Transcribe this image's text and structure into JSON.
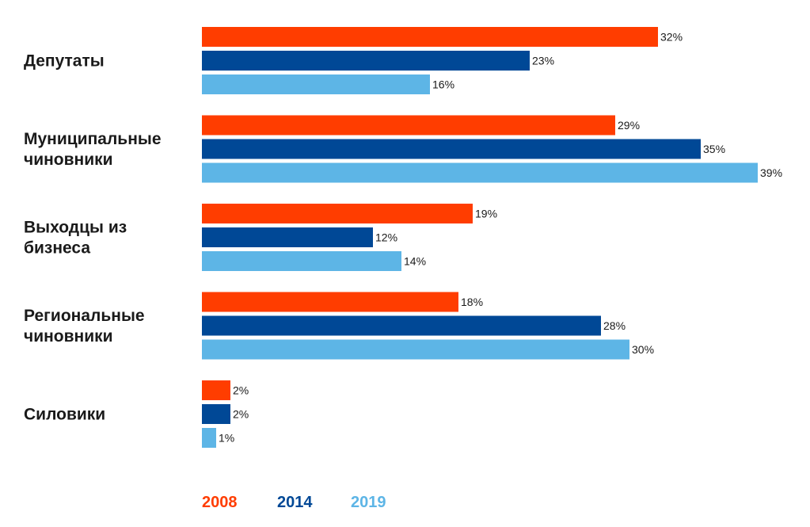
{
  "chart_data": {
    "type": "bar",
    "orientation": "horizontal",
    "categories": [
      [
        "Депутаты"
      ],
      [
        "Муниципальные",
        "чиновники"
      ],
      [
        "Выходцы из",
        "бизнеса"
      ],
      [
        "Региональные",
        "чиновники"
      ],
      [
        "Силовики"
      ]
    ],
    "series": [
      {
        "name": "2008",
        "color": "#ff3d00",
        "values": [
          32,
          29,
          19,
          18,
          2
        ]
      },
      {
        "name": "2014",
        "color": "#004896",
        "values": [
          23,
          35,
          12,
          28,
          2
        ]
      },
      {
        "name": "2019",
        "color": "#5db5e6",
        "values": [
          16,
          39,
          14,
          30,
          1
        ]
      }
    ],
    "value_suffix": "%",
    "legend_position": "bottom-left",
    "grid": false
  }
}
